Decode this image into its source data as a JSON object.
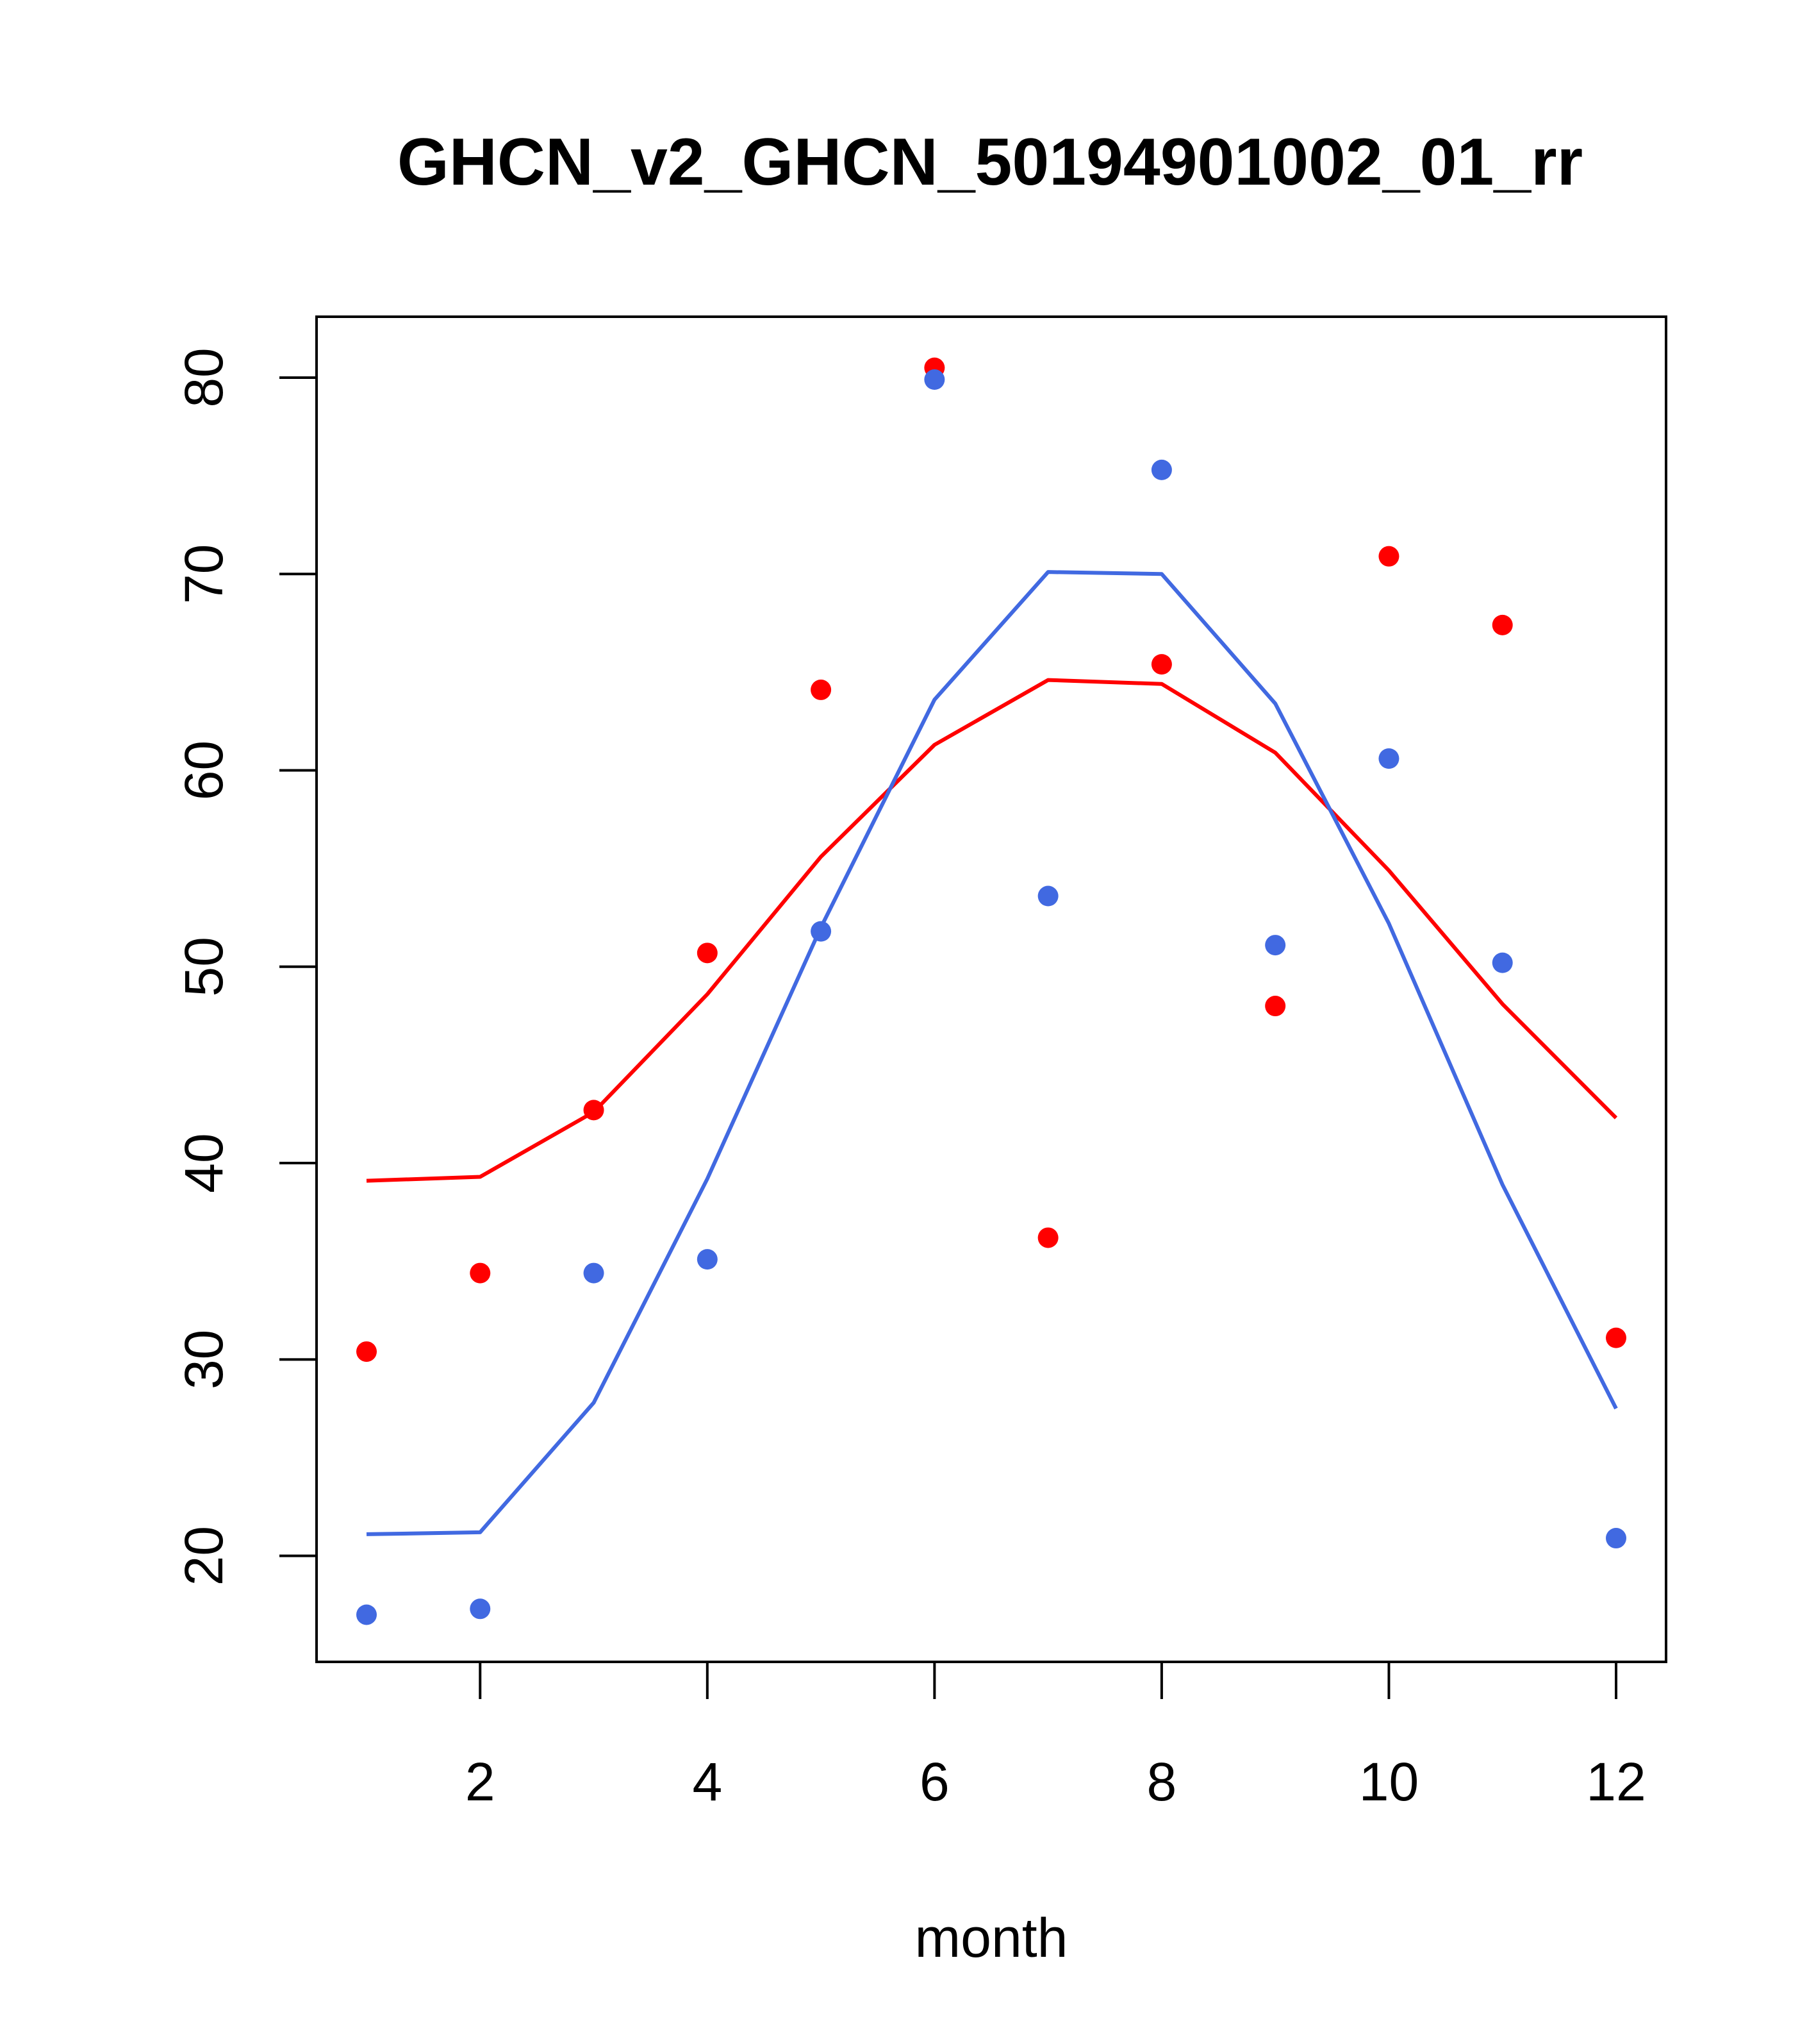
{
  "chart_data": {
    "type": "scatter",
    "title": "GHCN_v2_GHCN_50194901002_01_rr",
    "xlabel": "month",
    "ylabel": "",
    "xlim": [
      0.56,
      12.44
    ],
    "ylim": [
      14.6,
      83.1
    ],
    "xticks": [
      2,
      4,
      6,
      8,
      10,
      12
    ],
    "yticks": [
      20,
      30,
      40,
      50,
      60,
      70,
      80
    ],
    "x": [
      1,
      2,
      3,
      4,
      5,
      6,
      7,
      8,
      9,
      10,
      11,
      12
    ],
    "series": [
      {
        "name": "red-points",
        "kind": "points",
        "color": "#ff0000",
        "values": [
          30.4,
          34.4,
          42.7,
          50.7,
          64.1,
          80.5,
          36.2,
          65.4,
          48.0,
          70.9,
          67.4,
          31.1
        ]
      },
      {
        "name": "blue-points",
        "kind": "points",
        "color": "#4169e1",
        "values": [
          17.0,
          17.3,
          34.4,
          35.1,
          51.8,
          79.9,
          53.6,
          75.3,
          51.1,
          60.6,
          50.2,
          20.9
        ]
      },
      {
        "name": "red-line",
        "kind": "line",
        "color": "#ff0000",
        "values": [
          39.1,
          39.3,
          42.6,
          48.6,
          55.6,
          61.3,
          64.6,
          64.4,
          60.9,
          54.9,
          48.1,
          42.3
        ]
      },
      {
        "name": "blue-line",
        "kind": "line",
        "color": "#4169e1",
        "values": [
          21.1,
          21.2,
          27.8,
          39.2,
          52.0,
          63.6,
          70.1,
          70.0,
          63.4,
          52.2,
          38.9,
          27.5
        ]
      }
    ]
  }
}
